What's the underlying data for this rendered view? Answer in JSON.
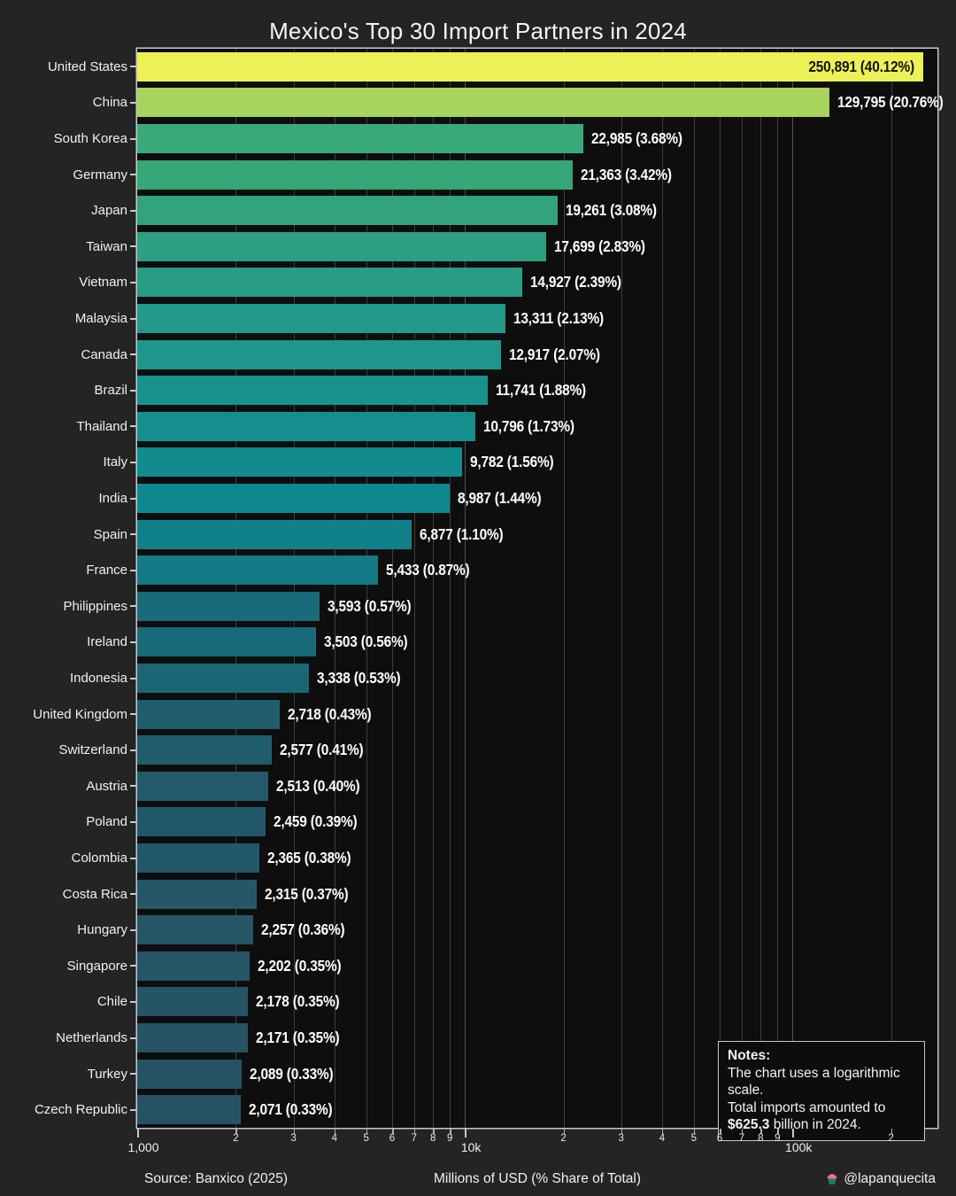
{
  "title": "Mexico's Top 30 Import Partners in 2024",
  "footer": {
    "source": "Source: Banxico (2025)",
    "x_axis_title": "Millions of USD (% Share of Total)",
    "handle": "@lapanquecita",
    "handle_icon": "cupcake-icon"
  },
  "notes": {
    "heading": "Notes:",
    "line1": "The chart uses a logarithmic scale.",
    "line2": "Total imports amounted to",
    "line3_bold": "$625.3",
    "line3_rest": " billion in 2024."
  },
  "colors": {
    "figure_bg": "#242424",
    "plot_bg": "#0e0e0e",
    "plot_border": "#c9c9c9",
    "grid_minor": "#3e3e3e",
    "grid_major": "#525252",
    "text": "#f2f2f2",
    "inside_label_text": "#131313"
  },
  "chart_data": {
    "type": "bar",
    "orientation": "horizontal",
    "x_scale": "log10",
    "x_range": [
      1000,
      277000
    ],
    "grid": true,
    "legend": false,
    "title": "Mexico's Top 30 Import Partners in 2024",
    "xlabel": "Millions of USD (% Share of Total)",
    "ylabel": "",
    "categories": [
      "United States",
      "China",
      "South Korea",
      "Germany",
      "Japan",
      "Taiwan",
      "Vietnam",
      "Malaysia",
      "Canada",
      "Brazil",
      "Thailand",
      "Italy",
      "India",
      "Spain",
      "France",
      "Philippines",
      "Ireland",
      "Indonesia",
      "United Kingdom",
      "Switzerland",
      "Austria",
      "Poland",
      "Colombia",
      "Costa Rica",
      "Hungary",
      "Singapore",
      "Chile",
      "Netherlands",
      "Turkey",
      "Czech Republic"
    ],
    "values": [
      250891,
      129795,
      22985,
      21363,
      19261,
      17699,
      14927,
      13311,
      12917,
      11741,
      10796,
      9782,
      8987,
      6877,
      5433,
      3593,
      3503,
      3338,
      2718,
      2577,
      2513,
      2459,
      2365,
      2315,
      2257,
      2202,
      2178,
      2171,
      2089,
      2071
    ],
    "share_pct": [
      40.12,
      20.76,
      3.68,
      3.42,
      3.08,
      2.83,
      2.39,
      2.13,
      2.07,
      1.88,
      1.73,
      1.56,
      1.44,
      1.1,
      0.87,
      0.57,
      0.56,
      0.53,
      0.43,
      0.41,
      0.4,
      0.39,
      0.38,
      0.37,
      0.36,
      0.35,
      0.35,
      0.35,
      0.33,
      0.33
    ],
    "bar_labels": [
      "250,891 (40.12%)",
      "129,795 (20.76%)",
      "22,985 (3.68%)",
      "21,363 (3.42%)",
      "19,261 (3.08%)",
      "17,699 (2.83%)",
      "14,927 (2.39%)",
      "13,311 (2.13%)",
      "12,917 (2.07%)",
      "11,741 (1.88%)",
      "10,796 (1.73%)",
      "9,782 (1.56%)",
      "8,987 (1.44%)",
      "6,877 (1.10%)",
      "5,433 (0.87%)",
      "3,593 (0.57%)",
      "3,503 (0.56%)",
      "3,338 (0.53%)",
      "2,718 (0.43%)",
      "2,577 (0.41%)",
      "2,513 (0.40%)",
      "2,459 (0.39%)",
      "2,365 (0.38%)",
      "2,315 (0.37%)",
      "2,257 (0.36%)",
      "2,202 (0.35%)",
      "2,178 (0.35%)",
      "2,171 (0.35%)",
      "2,089 (0.33%)",
      "2,071 (0.33%)"
    ],
    "bar_colors": [
      "#ecf155",
      "#a8d45d",
      "#3aaa7d",
      "#37a678",
      "#32a37d",
      "#2ea081",
      "#289c85",
      "#229989",
      "#1f968b",
      "#19928d",
      "#158f8e",
      "#108b8e",
      "#0d888e",
      "#10808b",
      "#147a86",
      "#1a6b79",
      "#196a78",
      "#1b6675",
      "#205d6d",
      "#215c6c",
      "#225a6b",
      "#22596a",
      "#235869",
      "#245768",
      "#245666",
      "#255566",
      "#255565",
      "#265464",
      "#265363",
      "#275263"
    ],
    "inside_label_indices": [
      0
    ],
    "x_major_ticks": [
      {
        "value": 1000,
        "label": "1,000"
      },
      {
        "value": 10000,
        "label": "10k"
      },
      {
        "value": 100000,
        "label": "100k"
      }
    ],
    "x_minor_ticks": [
      {
        "value": 2000,
        "label": "2"
      },
      {
        "value": 3000,
        "label": "3"
      },
      {
        "value": 4000,
        "label": "4"
      },
      {
        "value": 5000,
        "label": "5"
      },
      {
        "value": 6000,
        "label": "6"
      },
      {
        "value": 7000,
        "label": "7"
      },
      {
        "value": 8000,
        "label": "8"
      },
      {
        "value": 9000,
        "label": "9"
      },
      {
        "value": 20000,
        "label": "2"
      },
      {
        "value": 30000,
        "label": "3"
      },
      {
        "value": 40000,
        "label": "4"
      },
      {
        "value": 50000,
        "label": "5"
      },
      {
        "value": 60000,
        "label": "6"
      },
      {
        "value": 70000,
        "label": "7"
      },
      {
        "value": 80000,
        "label": "8"
      },
      {
        "value": 90000,
        "label": "9"
      },
      {
        "value": 200000,
        "label": "2"
      }
    ]
  }
}
